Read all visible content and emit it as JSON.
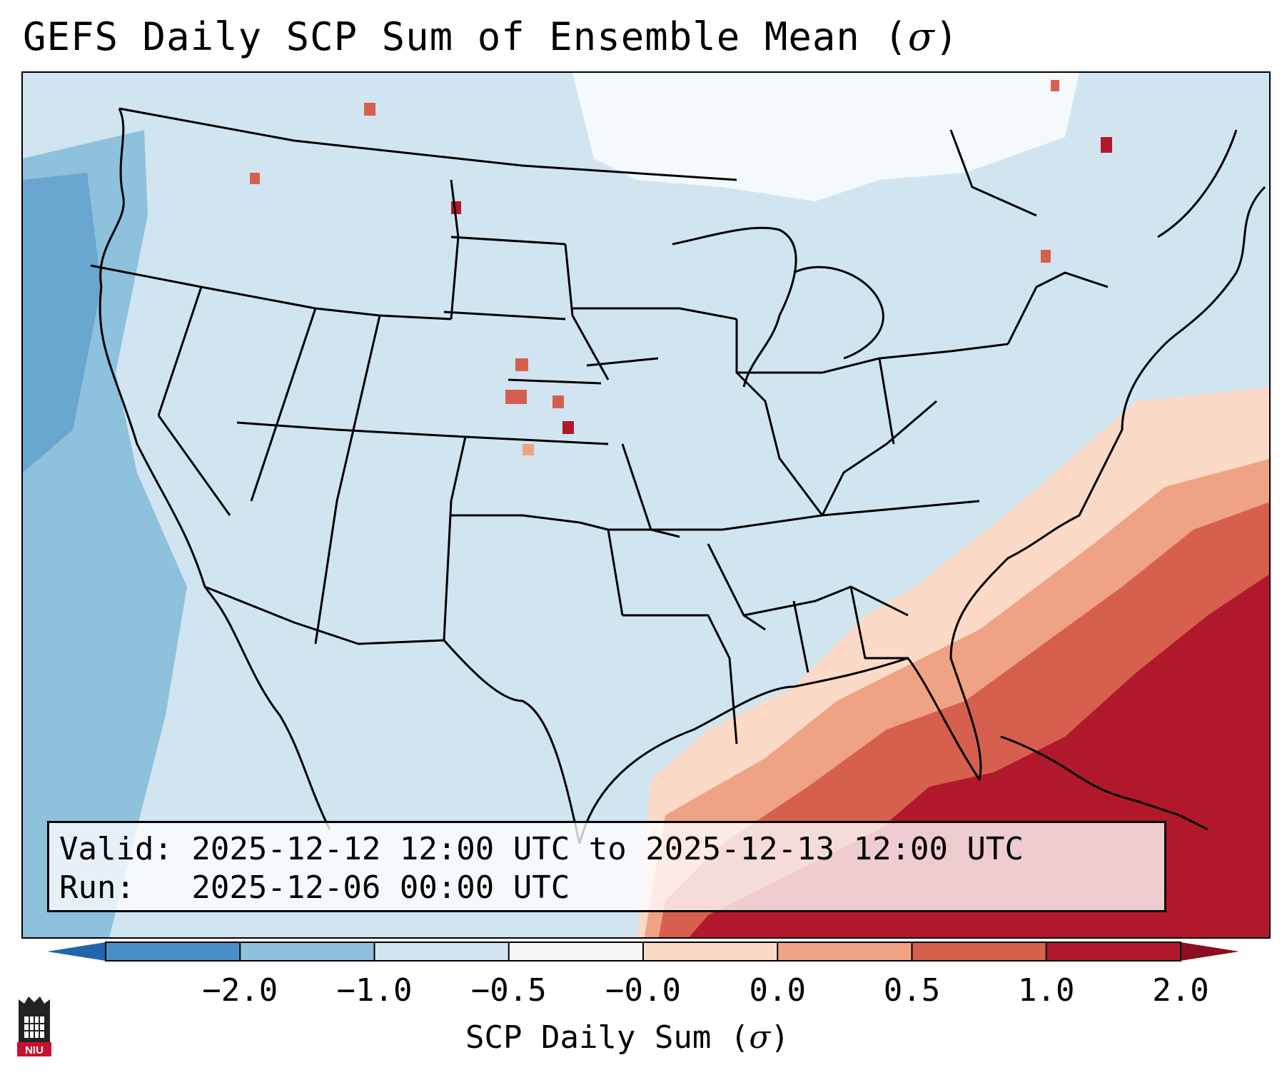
{
  "title": {
    "prefix": "GEFS Daily SCP Sum of Ensemble Mean (",
    "symbol": "σ",
    "suffix": ")"
  },
  "info": {
    "valid_line": "Valid: 2025-12-12 12:00 UTC to 2025-12-13 12:00 UTC",
    "run_line": "Run:   2025-12-06 00:00 UTC"
  },
  "colorbar": {
    "tick_labels": [
      "−2.0",
      "−1.0",
      "−0.5",
      "−0.0",
      "0.0",
      "0.5",
      "1.0",
      "2.0"
    ],
    "bin_colors": [
      "#4a90c6",
      "#8ec1dc",
      "#d1e5f1",
      "#f7f7f7",
      "#fbdac7",
      "#f0a384",
      "#d6604d",
      "#b2182b"
    ],
    "under_color": "#2166ac",
    "over_color": "#8a0f1f",
    "label_prefix": "SCP Daily Sum (",
    "label_symbol": "σ",
    "label_suffix": ")"
  },
  "logo": {
    "text": "NIU",
    "color": "#c8102e"
  }
}
